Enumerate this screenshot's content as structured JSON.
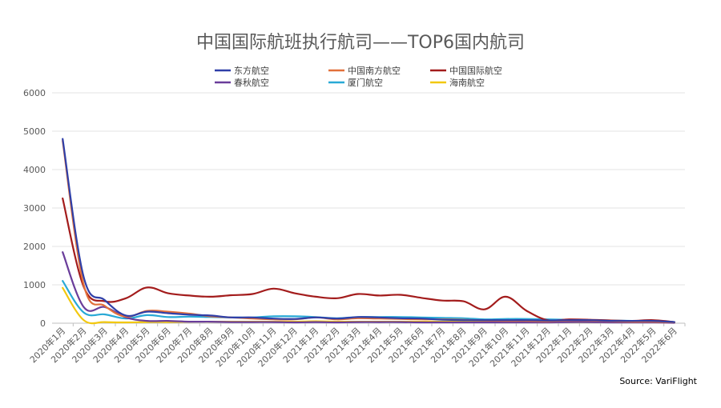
{
  "chart_data": {
    "type": "line",
    "title": "中国国际航班执行航司——TOP6国内航司",
    "source": "Source: VariFlight",
    "xlabel": "",
    "ylabel": "",
    "ylim": [
      0,
      6000
    ],
    "yticks": [
      0,
      1000,
      2000,
      3000,
      4000,
      5000,
      6000
    ],
    "grid": true,
    "legend_position": "top",
    "categories": [
      "2020年1月",
      "2020年2月",
      "2020年3月",
      "2020年4月",
      "2020年5月",
      "2020年6月",
      "2020年7月",
      "2020年8月",
      "2020年9月",
      "2020年10月",
      "2020年11月",
      "2020年12月",
      "2021年1月",
      "2021年2月",
      "2021年3月",
      "2021年4月",
      "2021年5月",
      "2021年6月",
      "2021年7月",
      "2021年8月",
      "2021年9月",
      "2021年10月",
      "2021年11月",
      "2021年12月",
      "2022年1月",
      "2022年2月",
      "2022年3月",
      "2022年4月",
      "2022年5月",
      "2022年6月"
    ],
    "series": [
      {
        "name": "东方航空",
        "color": "#2f3fa8",
        "values": [
          4800,
          1200,
          600,
          200,
          300,
          260,
          220,
          200,
          150,
          150,
          120,
          110,
          150,
          120,
          160,
          150,
          130,
          120,
          90,
          80,
          80,
          80,
          80,
          70,
          80,
          80,
          60,
          60,
          60,
          30
        ]
      },
      {
        "name": "中国南方航空",
        "color": "#e2703a",
        "values": [
          4750,
          1000,
          450,
          170,
          320,
          300,
          250,
          180,
          150,
          120,
          100,
          100,
          150,
          100,
          130,
          120,
          110,
          100,
          100,
          90,
          70,
          60,
          60,
          50,
          70,
          70,
          50,
          40,
          40,
          20
        ]
      },
      {
        "name": "中国国际航空",
        "color": "#a31c1c",
        "values": [
          3250,
          950,
          570,
          650,
          930,
          780,
          720,
          690,
          730,
          760,
          900,
          780,
          690,
          650,
          760,
          720,
          740,
          660,
          590,
          570,
          360,
          690,
          320,
          80,
          100,
          90,
          70,
          60,
          80,
          30
        ]
      },
      {
        "name": "春秋航空",
        "color": "#6a3d9a",
        "values": [
          1850,
          420,
          420,
          150,
          60,
          60,
          40,
          40,
          30,
          30,
          30,
          20,
          30,
          20,
          30,
          30,
          30,
          20,
          20,
          20,
          20,
          20,
          20,
          20,
          30,
          30,
          20,
          20,
          20,
          10
        ]
      },
      {
        "name": "厦门航空",
        "color": "#29a9d6",
        "values": [
          1100,
          280,
          230,
          120,
          210,
          160,
          170,
          160,
          150,
          150,
          180,
          180,
          160,
          130,
          160,
          160,
          160,
          150,
          140,
          130,
          100,
          110,
          110,
          100,
          90,
          80,
          70,
          60,
          60,
          30
        ]
      },
      {
        "name": "海南航空",
        "color": "#f2c80f",
        "values": [
          920,
          80,
          30,
          20,
          30,
          30,
          40,
          40,
          40,
          40,
          40,
          40,
          50,
          40,
          40,
          40,
          40,
          40,
          40,
          40,
          40,
          40,
          40,
          40,
          30,
          30,
          30,
          30,
          30,
          20
        ]
      }
    ]
  }
}
